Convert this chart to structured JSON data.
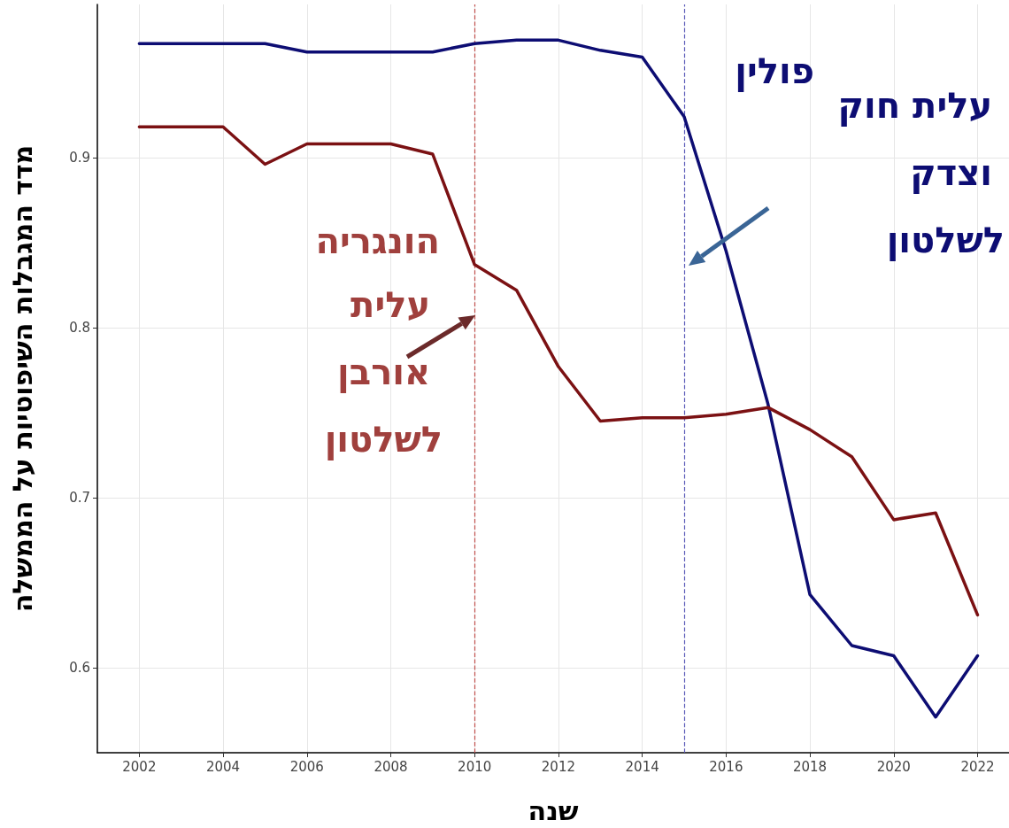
{
  "chart_data": {
    "type": "line",
    "xlabel": "שנה",
    "ylabel": "מדד המגבלות השיפוטיות על הממשלה",
    "x": [
      2002,
      2003,
      2004,
      2005,
      2006,
      2007,
      2008,
      2009,
      2010,
      2011,
      2012,
      2013,
      2014,
      2015,
      2016,
      2017,
      2018,
      2019,
      2020,
      2021,
      2022
    ],
    "series": [
      {
        "name": "פולין",
        "color": "#0d0d73",
        "values": [
          0.967,
          0.967,
          0.967,
          0.967,
          0.962,
          0.962,
          0.962,
          0.962,
          0.967,
          0.969,
          0.969,
          0.963,
          0.959,
          0.924,
          0.845,
          0.755,
          0.643,
          0.613,
          0.607,
          0.571,
          0.607
        ]
      },
      {
        "name": "הונגריה",
        "color": "#7b1113",
        "values": [
          0.918,
          0.918,
          0.918,
          0.896,
          0.908,
          0.908,
          0.908,
          0.902,
          0.837,
          0.822,
          0.777,
          0.745,
          0.747,
          0.747,
          0.749,
          0.753,
          0.74,
          0.724,
          0.687,
          0.691,
          0.631
        ]
      }
    ],
    "xlim": [
      2001,
      2022.75
    ],
    "xticks": [
      2002,
      2004,
      2006,
      2008,
      2010,
      2012,
      2014,
      2016,
      2018,
      2020,
      2022
    ],
    "ylim": [
      0.55,
      0.99
    ],
    "yticks": [
      0.6,
      0.7,
      0.8,
      0.9
    ],
    "grid": true,
    "legend": false,
    "marker": "none",
    "line_style": "solid",
    "ref_lines": [
      {
        "axis": "x",
        "value": 2010,
        "label": null,
        "color": "#c0504d",
        "line_style": "dashed"
      },
      {
        "axis": "x",
        "value": 2015,
        "label": null,
        "color": "#5a5ab8",
        "line_style": "dashed"
      }
    ],
    "annotations": [
      "עלית אורבן לשלטון",
      "עלית חוק וצדק לשלטון"
    ]
  }
}
